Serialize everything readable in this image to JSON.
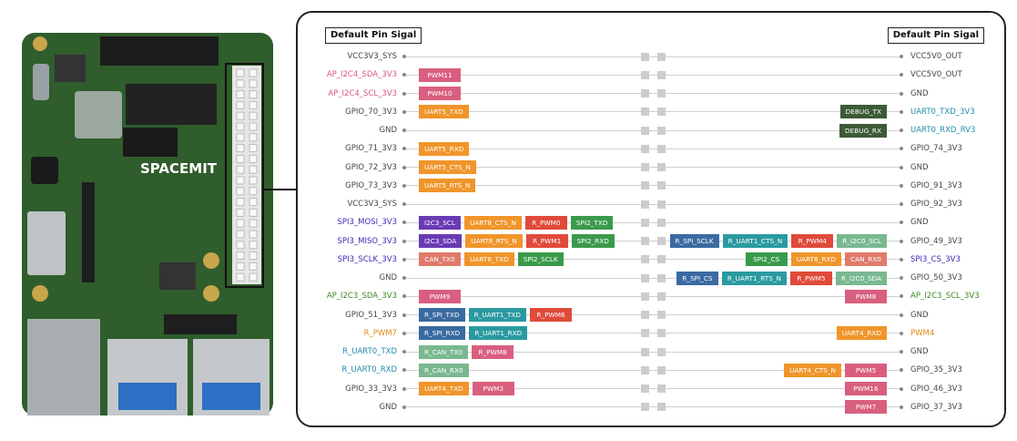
{
  "header": {
    "left_title": "Default Pin Sigal",
    "right_title": "Default Pin Sigal"
  },
  "board": {
    "logo": "SPACEMIT"
  },
  "rows": [
    {
      "left": {
        "label": "VCC3V3_SYS",
        "color": "#444444",
        "tags": []
      },
      "right": {
        "label": "VCC5V0_OUT",
        "color": "#444444",
        "tags": []
      }
    },
    {
      "left": {
        "label": "AP_I2C4_SDA_3V3",
        "color": "#d9577f",
        "tags": [
          {
            "text": "PWM11",
            "color": "#d95f7f"
          }
        ]
      },
      "right": {
        "label": "VCC5V0_OUT",
        "color": "#444444",
        "tags": []
      }
    },
    {
      "left": {
        "label": "AP_I2C4_SCL_3V3",
        "color": "#d9577f",
        "tags": [
          {
            "text": "PWM10",
            "color": "#d95f7f"
          }
        ]
      },
      "right": {
        "label": "GND",
        "color": "#444444",
        "tags": []
      }
    },
    {
      "left": {
        "label": "GPIO_70_3V3",
        "color": "#444444",
        "tags": [
          {
            "text": "UART5_TXD",
            "color": "#f0952a"
          }
        ]
      },
      "right": {
        "label": "UART0_TXD_3V3",
        "color": "#1f8ab0",
        "tags": [
          {
            "text": "DEBUG_TX",
            "color": "#3c5a36"
          }
        ]
      }
    },
    {
      "left": {
        "label": "GND",
        "color": "#444444",
        "tags": []
      },
      "right": {
        "label": "UART0_RXD_RV3",
        "color": "#1f8ab0",
        "tags": [
          {
            "text": "DEBUG_RX",
            "color": "#3c5a36"
          }
        ]
      }
    },
    {
      "left": {
        "label": "GPIO_71_3V3",
        "color": "#444444",
        "tags": [
          {
            "text": "UART5_RXD",
            "color": "#f0952a"
          }
        ]
      },
      "right": {
        "label": "GPIO_74_3V3",
        "color": "#444444",
        "tags": []
      }
    },
    {
      "left": {
        "label": "GPIO_72_3V3",
        "color": "#444444",
        "tags": [
          {
            "text": "UART5_CTS_N",
            "color": "#f0952a"
          }
        ]
      },
      "right": {
        "label": "GND",
        "color": "#444444",
        "tags": []
      }
    },
    {
      "left": {
        "label": "GPIO_73_3V3",
        "color": "#444444",
        "tags": [
          {
            "text": "UART5_RTS_N",
            "color": "#f0952a"
          }
        ]
      },
      "right": {
        "label": "GPIO_91_3V3",
        "color": "#444444",
        "tags": []
      }
    },
    {
      "left": {
        "label": "VCC3V3_SYS",
        "color": "#444444",
        "tags": []
      },
      "right": {
        "label": "GPIO_92_3V3",
        "color": "#444444",
        "tags": []
      }
    },
    {
      "left": {
        "label": "SPI3_MOSI_3V3",
        "color": "#3a2bb5",
        "tags": [
          {
            "text": "I2C3_SCL",
            "color": "#6a3ab5"
          },
          {
            "text": "UART8_CTS_N",
            "color": "#f0952a"
          },
          {
            "text": "R_PWM0",
            "color": "#e04a3a"
          },
          {
            "text": "SPI2_TXD",
            "color": "#3a9a4a"
          }
        ]
      },
      "right": {
        "label": "GND",
        "color": "#444444",
        "tags": []
      }
    },
    {
      "left": {
        "label": "SPI3_MISO_3V3",
        "color": "#3a2bb5",
        "tags": [
          {
            "text": "I2C3_SDA",
            "color": "#6a3ab5"
          },
          {
            "text": "UART8_RTS_N",
            "color": "#f0952a"
          },
          {
            "text": "R_PWM1",
            "color": "#e04a3a"
          },
          {
            "text": "SPI2_RXD",
            "color": "#3a9a4a"
          }
        ]
      },
      "right": {
        "label": "GPIO_49_3V3",
        "color": "#444444",
        "tags": [
          {
            "text": "R_SPI_SCLK",
            "color": "#3a6aa0"
          },
          {
            "text": "R_UART1_CTS_N",
            "color": "#2a9aa0"
          },
          {
            "text": "R_PWM4",
            "color": "#e04a3a"
          },
          {
            "text": "R_I2C0_SCL",
            "color": "#7ab890"
          }
        ]
      }
    },
    {
      "left": {
        "label": "SPI3_SCLK_3V3",
        "color": "#3a2bb5",
        "tags": [
          {
            "text": "CAN_TX0",
            "color": "#e07a6a"
          },
          {
            "text": "UART8_TXD",
            "color": "#f0952a"
          },
          {
            "text": "SPI2_SCLK",
            "color": "#3a9a4a"
          }
        ]
      },
      "right": {
        "label": "SPI3_CS_3V3",
        "color": "#3a2bb5",
        "tags": [
          {
            "text": "SPI2_CS",
            "color": "#3a9a4a"
          },
          {
            "text": "UART8_RXD",
            "color": "#f0952a"
          },
          {
            "text": "CAN_RX0",
            "color": "#e07a6a"
          }
        ]
      }
    },
    {
      "left": {
        "label": "GND",
        "color": "#444444",
        "tags": []
      },
      "right": {
        "label": "GPIO_50_3V3",
        "color": "#444444",
        "tags": [
          {
            "text": "R_SPI_CS",
            "color": "#3a6aa0"
          },
          {
            "text": "R_UART1_RTS_N",
            "color": "#2a9aa0"
          },
          {
            "text": "R_PWM5",
            "color": "#e04a3a"
          },
          {
            "text": "R_I2C0_SDA",
            "color": "#7ab890"
          }
        ]
      }
    },
    {
      "left": {
        "label": "AP_I2C3_SDA_3V3",
        "color": "#3a8a1f",
        "tags": [
          {
            "text": "PWM9",
            "color": "#d95f7f"
          }
        ]
      },
      "right": {
        "label": "AP_I2C3_SCL_3V3",
        "color": "#3a8a1f",
        "tags": [
          {
            "text": "PWM8",
            "color": "#d95f7f"
          }
        ]
      }
    },
    {
      "left": {
        "label": "GPIO_51_3V3",
        "color": "#444444",
        "tags": [
          {
            "text": "R_SPI_TXD",
            "color": "#3a6aa0"
          },
          {
            "text": "R_UART1_TXD",
            "color": "#2a9aa0"
          },
          {
            "text": "R_PWM6",
            "color": "#e04a3a"
          }
        ]
      },
      "right": {
        "label": "GND",
        "color": "#444444",
        "tags": []
      }
    },
    {
      "left": {
        "label": "R_PWM7",
        "color": "#e08a1a",
        "tags": [
          {
            "text": "R_SPI_RXD",
            "color": "#3a6aa0"
          },
          {
            "text": "R_UART1_RXD",
            "color": "#2a9aa0"
          }
        ]
      },
      "right": {
        "label": "PWM4",
        "color": "#e08a1a",
        "tags": [
          {
            "text": "UART4_RXD",
            "color": "#f0952a"
          }
        ]
      }
    },
    {
      "left": {
        "label": "R_UART0_TXD",
        "color": "#1f8ab0",
        "tags": [
          {
            "text": "R_CAN_TX0",
            "color": "#7ab890"
          },
          {
            "text": "R_PWM8",
            "color": "#d95f7f"
          }
        ]
      },
      "right": {
        "label": "GND",
        "color": "#444444",
        "tags": []
      }
    },
    {
      "left": {
        "label": "R_UART0_RXD",
        "color": "#1f8ab0",
        "tags": [
          {
            "text": "R_CAN_RX0",
            "color": "#7ab890"
          }
        ]
      },
      "right": {
        "label": "GPIO_35_3V3",
        "color": "#444444",
        "tags": [
          {
            "text": "UART4_CTS_N",
            "color": "#f0952a"
          },
          {
            "text": "PWM5",
            "color": "#d95f7f"
          }
        ]
      }
    },
    {
      "left": {
        "label": "GPIO_33_3V3",
        "color": "#444444",
        "tags": [
          {
            "text": "UART4_TXD",
            "color": "#f0952a"
          },
          {
            "text": "PWM3",
            "color": "#d95f7f"
          }
        ]
      },
      "right": {
        "label": "GPIO_46_3V3",
        "color": "#444444",
        "tags": [
          {
            "text": "PWM16",
            "color": "#d95f7f"
          }
        ]
      }
    },
    {
      "left": {
        "label": "GND",
        "color": "#444444",
        "tags": []
      },
      "right": {
        "label": "GPIO_37_3V3",
        "color": "#444444",
        "tags": [
          {
            "text": "PWM7",
            "color": "#d95f7f"
          }
        ]
      }
    }
  ]
}
